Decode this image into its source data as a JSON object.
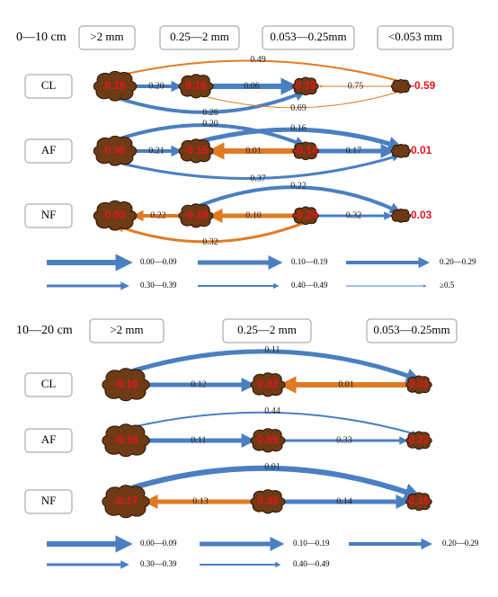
{
  "panels": [
    {
      "depth": "0—10 cm",
      "headers": [
        ">2 mm",
        "0.25—2 mm",
        "0.053—0.25mm",
        "<0.053 mm"
      ],
      "rows": [
        {
          "label": "CL",
          "nodes": [
            "0.18",
            "0.16",
            "0.19",
            "-0.59"
          ],
          "arrows": [
            {
              "label": "0.20",
              "color": "#4a7fc1"
            },
            {
              "label": "0.06",
              "color": "#4a7fc1"
            },
            {
              "label": "0.75",
              "color": "#e07b24"
            },
            {
              "label": "0.49",
              "color": "#e07b24"
            },
            {
              "label": "0.26",
              "color": "#4a7fc1"
            },
            {
              "label": "0.69",
              "color": "#e07b24"
            }
          ]
        },
        {
          "label": "AF",
          "nodes": [
            "0.36",
            "-0.15",
            "-0.14",
            "0.01"
          ],
          "arrows": [
            {
              "label": "0.21",
              "color": "#4a7fc1"
            },
            {
              "label": "0.01",
              "color": "#e07b24"
            },
            {
              "label": "0.17",
              "color": "#4a7fc1"
            },
            {
              "label": "0.20",
              "color": "#4a7fc1"
            },
            {
              "label": "0.16",
              "color": "#4a7fc1"
            },
            {
              "label": "0.37",
              "color": "#4a7fc1"
            }
          ]
        },
        {
          "label": "NF",
          "nodes": [
            "0.03",
            "-0.19",
            "-0.29",
            "0.03"
          ],
          "arrows": [
            {
              "label": "0.22",
              "color": "#e07b24"
            },
            {
              "label": "0.10",
              "color": "#e07b24"
            },
            {
              "label": "0.32",
              "color": "#4a7fc1"
            },
            {
              "label": "0.22",
              "color": "#4a7fc1"
            },
            {
              "label": "0.32",
              "color": "#e07b24"
            }
          ]
        }
      ],
      "legend": [
        "0.00—0.09",
        "0.10—0.19",
        "0.20—0.29",
        "0.30—0.39",
        "0.40—0.49",
        "≥0.5"
      ]
    },
    {
      "depth": "10—20 cm",
      "headers": [
        ">2 mm",
        "0.25—2 mm",
        "0.053—0.25mm"
      ],
      "rows": [
        {
          "label": "CL",
          "nodes": [
            "-0.10",
            "0.02",
            "0.01"
          ],
          "arrows": [
            {
              "label": "0.12",
              "color": "#4a7fc1"
            },
            {
              "label": "0.01",
              "color": "#e07b24"
            },
            {
              "label": "0.11",
              "color": "#4a7fc1"
            }
          ]
        },
        {
          "label": "AF",
          "nodes": [
            "-0.16",
            "0.05",
            "0.22"
          ],
          "arrows": [
            {
              "label": "0.11",
              "color": "#4a7fc1"
            },
            {
              "label": "0.33",
              "color": "#4a7fc1"
            },
            {
              "label": "0.44",
              "color": "#4a7fc1"
            }
          ]
        },
        {
          "label": "NF",
          "nodes": [
            "-0.17",
            "0.30",
            "0.16"
          ],
          "arrows": [
            {
              "label": "0.13",
              "color": "#e07b24"
            },
            {
              "label": "0.14",
              "color": "#4a7fc1"
            },
            {
              "label": "0.01",
              "color": "#4a7fc1"
            }
          ]
        }
      ],
      "legend": [
        "0.00—0.09",
        "0.10—0.19",
        "0.20—0.29",
        "0.30—0.39",
        "0.40—0.49"
      ]
    }
  ]
}
